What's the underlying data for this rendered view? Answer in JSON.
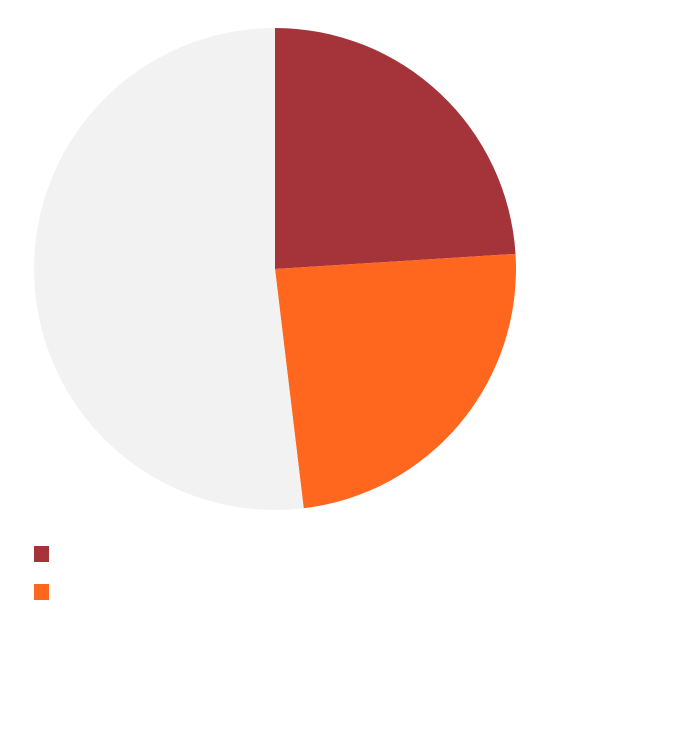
{
  "chart_data": {
    "type": "pie",
    "title": "",
    "start_angle": "top",
    "direction": "clockwise",
    "slices": [
      {
        "label": "",
        "value": 24.0,
        "color": "#a4343a"
      },
      {
        "label": "",
        "value": 24.1,
        "color": "#ff671f"
      },
      {
        "label": "",
        "value": 51.9,
        "color": "#f2f2f2"
      }
    ],
    "legend": {
      "placement": "bottom-left",
      "entries": [
        {
          "label": "",
          "color": "#a4343a"
        },
        {
          "label": "",
          "color": "#ff671f"
        }
      ]
    }
  }
}
